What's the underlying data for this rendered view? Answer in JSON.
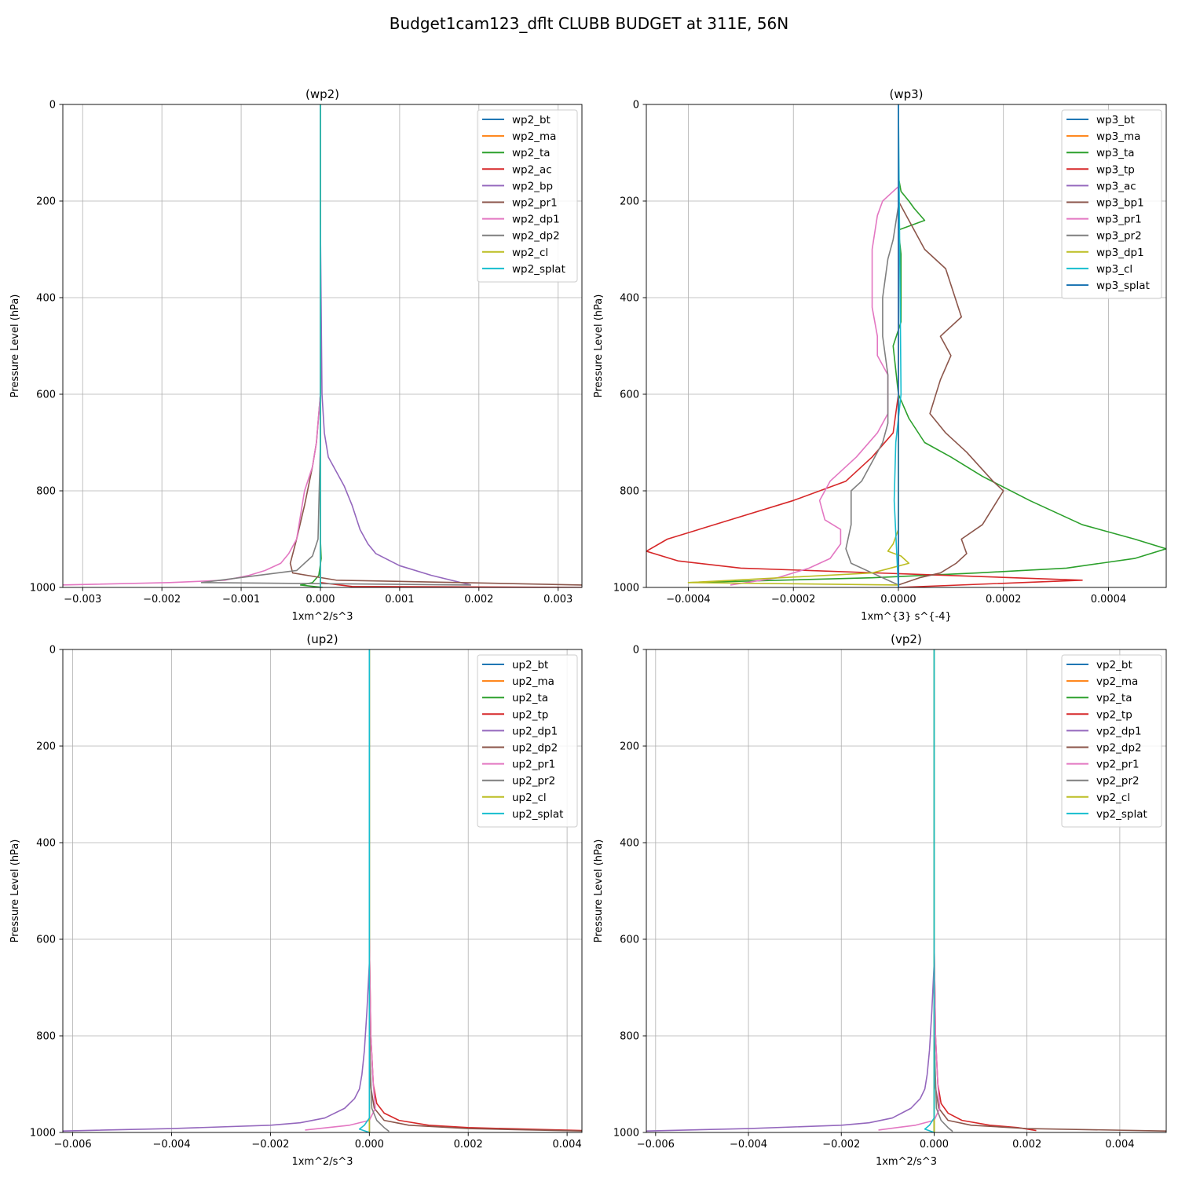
{
  "figure": {
    "title": "Budget1cam123_dflt CLUBB BUDGET at 311E, 56N"
  },
  "colors": [
    "#1f77b4",
    "#ff7f0e",
    "#2ca02c",
    "#d62728",
    "#9467bd",
    "#8c564b",
    "#e377c2",
    "#7f7f7f",
    "#bcbd22",
    "#17becf"
  ],
  "chart_data": [
    {
      "type": "line",
      "title": "(wp2)",
      "xlabel": "1xm^2/s^3",
      "ylabel": "Pressure Level (hPa)",
      "xlim": [
        -0.00325,
        0.0033
      ],
      "ylim": [
        1000,
        0
      ],
      "xticks": [
        -0.003,
        -0.002,
        -0.001,
        0.0,
        0.001,
        0.002,
        0.003
      ],
      "xticklabels": [
        "−0.003",
        "−0.002",
        "−0.001",
        "0.000",
        "0.001",
        "0.002",
        "0.003"
      ],
      "yticks": [
        0,
        200,
        400,
        600,
        800,
        1000
      ],
      "yticklabels": [
        "0",
        "200",
        "400",
        "600",
        "800",
        "1000"
      ],
      "grid": true,
      "legend": "upper right",
      "series": [
        {
          "name": "wp2_bt",
          "x": [
            0,
            0
          ],
          "y": [
            0,
            1000
          ]
        },
        {
          "name": "wp2_ma",
          "x": [
            0,
            0
          ],
          "y": [
            0,
            1000
          ]
        },
        {
          "name": "wp2_ta",
          "x": [
            0,
            0,
            1e-05,
            -2e-05,
            -0.0001,
            -0.00025,
            3e-05
          ],
          "y": [
            0,
            900,
            940,
            975,
            990,
            995,
            1000
          ]
        },
        {
          "name": "wp2_ac",
          "x": [
            0,
            0,
            0.0004,
            0.0033
          ],
          "y": [
            0,
            990,
            998,
            1000
          ]
        },
        {
          "name": "wp2_bp",
          "x": [
            0,
            2e-05,
            5e-05,
            0.0001,
            0.0002,
            0.0003,
            0.0004,
            0.0005,
            0.0006,
            0.0007,
            0.001,
            0.0014,
            0.0019
          ],
          "y": [
            250,
            600,
            680,
            730,
            760,
            790,
            830,
            880,
            910,
            930,
            955,
            975,
            995
          ]
        },
        {
          "name": "wp2_pr1",
          "x": [
            0,
            -5e-05,
            -0.0001,
            -0.0002,
            -0.0003,
            -0.00038,
            -0.00035,
            0.0002,
            0.0033
          ],
          "y": [
            600,
            700,
            750,
            830,
            900,
            950,
            970,
            985,
            995
          ]
        },
        {
          "name": "wp2_dp1",
          "x": [
            0,
            -5e-05,
            -0.0001,
            -0.0002,
            -0.00025,
            -0.0003,
            -0.0004,
            -0.0005,
            -0.0007,
            -0.0009,
            -0.0012,
            -0.0019,
            -0.0033
          ],
          "y": [
            600,
            700,
            750,
            800,
            850,
            900,
            930,
            950,
            965,
            975,
            985,
            990,
            995
          ]
        },
        {
          "name": "wp2_dp2",
          "x": [
            0,
            -3e-05,
            -0.0001,
            -0.0003,
            -0.0015,
            0.0019
          ],
          "y": [
            700,
            900,
            935,
            965,
            990,
            995
          ]
        },
        {
          "name": "wp2_cl",
          "x": [
            0,
            0
          ],
          "y": [
            0,
            1000
          ]
        },
        {
          "name": "wp2_splat",
          "x": [
            0,
            0
          ],
          "y": [
            0,
            1000
          ]
        }
      ]
    },
    {
      "type": "line",
      "title": "(wp3)",
      "xlabel": "1xm^{3} s^{-4}",
      "ylabel": "Pressure Level (hPa)",
      "xlim": [
        -0.00048,
        0.00051
      ],
      "ylim": [
        1000,
        0
      ],
      "xticks": [
        -0.0004,
        -0.0002,
        0.0,
        0.0002,
        0.0004
      ],
      "xticklabels": [
        "−0.0004",
        "−0.0002",
        "0.0000",
        "0.0002",
        "0.0004"
      ],
      "yticks": [
        0,
        200,
        400,
        600,
        800,
        1000
      ],
      "yticklabels": [
        "0",
        "200",
        "400",
        "600",
        "800",
        "1000"
      ],
      "grid": true,
      "legend": "upper right",
      "series": [
        {
          "name": "wp3_bt",
          "x": [
            0,
            0
          ],
          "y": [
            0,
            1000
          ]
        },
        {
          "name": "wp3_ma",
          "x": [
            0,
            0
          ],
          "y": [
            0,
            1000
          ]
        },
        {
          "name": "wp3_ta",
          "x": [
            0,
            5e-06,
            2e-05,
            3e-05,
            5e-05,
            0.0,
            5e-06,
            5e-06,
            5e-06,
            -1e-05,
            0.0,
            2e-05,
            5e-05,
            0.0001,
            0.00016,
            0.00025,
            0.00035,
            0.00045,
            0.00051,
            0.00045,
            0.00032,
            0.00015,
            -5e-05,
            -0.0004
          ],
          "y": [
            150,
            180,
            200,
            215,
            240,
            260,
            310,
            380,
            450,
            500,
            600,
            650,
            700,
            730,
            770,
            820,
            870,
            900,
            920,
            940,
            960,
            970,
            980,
            990
          ]
        },
        {
          "name": "wp3_tp",
          "x": [
            0,
            0,
            -1e-05,
            -5e-05,
            -0.0001,
            -0.0002,
            -0.00032,
            -0.00044,
            -0.00048,
            -0.00042,
            -0.0003,
            0.00035,
            0.0
          ],
          "y": [
            0,
            600,
            680,
            730,
            780,
            820,
            860,
            900,
            925,
            945,
            960,
            985,
            1000
          ]
        },
        {
          "name": "wp3_ac",
          "x": [
            0,
            0
          ],
          "y": [
            0,
            1000
          ]
        },
        {
          "name": "wp3_bp1",
          "x": [
            0,
            2e-05,
            5e-05,
            9e-05,
            0.00012,
            8e-05,
            0.0001,
            8e-05,
            6e-05,
            9e-05,
            0.00013,
            0.00018,
            0.0002,
            0.00016,
            0.00012,
            0.00013,
            0.00011,
            8e-05,
            4e-05,
            0.0
          ],
          "y": [
            200,
            240,
            300,
            340,
            440,
            480,
            520,
            570,
            640,
            680,
            720,
            780,
            800,
            870,
            900,
            930,
            950,
            970,
            980,
            995
          ]
        },
        {
          "name": "wp3_pr1",
          "x": [
            0,
            -3e-05,
            -4e-05,
            -5e-05,
            -5e-05,
            -4e-05,
            -4e-05,
            -2e-05,
            -2e-05,
            -4e-05,
            -8e-05,
            -0.00013,
            -0.00015,
            -0.00014,
            -0.00011,
            -0.00011,
            -0.00013,
            -0.00017,
            -0.00023,
            -0.00032
          ],
          "y": [
            170,
            200,
            230,
            300,
            420,
            480,
            520,
            560,
            640,
            680,
            730,
            780,
            820,
            860,
            880,
            910,
            940,
            960,
            980,
            995
          ]
        },
        {
          "name": "wp3_pr2",
          "x": [
            0,
            -1e-05,
            -2e-05,
            -3e-05,
            -3e-05,
            -2e-05,
            -2e-05,
            -3e-05,
            -5e-05,
            -7e-05,
            -9e-05,
            -9e-05,
            -0.0001,
            -9e-05,
            -5e-05,
            -2e-05,
            0.0
          ],
          "y": [
            210,
            280,
            320,
            400,
            480,
            560,
            660,
            700,
            740,
            780,
            800,
            870,
            920,
            950,
            970,
            985,
            995
          ]
        },
        {
          "name": "wp3_dp1",
          "x": [
            0,
            0,
            -1e-05,
            -2e-05,
            5e-06,
            2e-05,
            -5e-05,
            -0.0004,
            0.0
          ],
          "y": [
            600,
            880,
            910,
            925,
            935,
            950,
            970,
            990,
            995
          ]
        },
        {
          "name": "wp3_cl",
          "x": [
            0,
            5e-06,
            -5e-06,
            -8e-06,
            0
          ],
          "y": [
            0,
            600,
            700,
            820,
            1000
          ]
        },
        {
          "name": "wp3_splat",
          "x": [
            0,
            0
          ],
          "y": [
            0,
            1000
          ]
        }
      ]
    },
    {
      "type": "line",
      "title": "(up2)",
      "xlabel": "1xm^2/s^3",
      "ylabel": "Pressure Level (hPa)",
      "xlim": [
        -0.0062,
        0.0043
      ],
      "ylim": [
        1000,
        0
      ],
      "xticks": [
        -0.006,
        -0.004,
        -0.002,
        0.0,
        0.002,
        0.004
      ],
      "xticklabels": [
        "−0.006",
        "−0.004",
        "−0.002",
        "0.000",
        "0.002",
        "0.004"
      ],
      "yticks": [
        0,
        200,
        400,
        600,
        800,
        1000
      ],
      "yticklabels": [
        "0",
        "200",
        "400",
        "600",
        "800",
        "1000"
      ],
      "grid": true,
      "legend": "upper right",
      "series": [
        {
          "name": "up2_bt",
          "x": [
            0,
            0
          ],
          "y": [
            0,
            1000
          ]
        },
        {
          "name": "up2_ma",
          "x": [
            0,
            0
          ],
          "y": [
            0,
            1000
          ]
        },
        {
          "name": "up2_ta",
          "x": [
            0,
            0
          ],
          "y": [
            0,
            1000
          ]
        },
        {
          "name": "up2_tp",
          "x": [
            0,
            3e-05,
            8e-05,
            0.00015,
            0.0003,
            0.0006,
            0.0012,
            0.002,
            0.0043
          ],
          "y": [
            600,
            800,
            900,
            940,
            960,
            975,
            985,
            990,
            996
          ]
        },
        {
          "name": "up2_dp1",
          "x": [
            0,
            -5e-05,
            -0.0001,
            -0.00015,
            -0.0002,
            -0.0003,
            -0.0005,
            -0.0009,
            -0.0014,
            -0.002,
            -0.004,
            -0.0062
          ],
          "y": [
            650,
            750,
            830,
            880,
            910,
            930,
            950,
            970,
            980,
            985,
            992,
            997
          ]
        },
        {
          "name": "up2_dp2",
          "x": [
            0,
            2e-05,
            0.0001,
            0.0003,
            0.0008,
            0.002,
            0.0043
          ],
          "y": [
            700,
            900,
            950,
            975,
            985,
            992,
            997
          ]
        },
        {
          "name": "up2_pr1",
          "x": [
            0,
            3e-05,
            8e-05,
            0.00012,
            0.0,
            -0.0004,
            -0.0013
          ],
          "y": [
            600,
            800,
            900,
            950,
            975,
            985,
            995
          ]
        },
        {
          "name": "up2_pr2",
          "x": [
            0,
            5e-05,
            0.00015,
            0.0003,
            0.0004
          ],
          "y": [
            800,
            950,
            975,
            990,
            998
          ]
        },
        {
          "name": "up2_cl",
          "x": [
            0,
            0
          ],
          "y": [
            0,
            1000
          ]
        },
        {
          "name": "up2_splat",
          "x": [
            0,
            0,
            -0.0001,
            -0.0002,
            0
          ],
          "y": [
            0,
            970,
            985,
            993,
            1000
          ]
        }
      ]
    },
    {
      "type": "line",
      "title": "(vp2)",
      "xlabel": "1xm^2/s^3",
      "ylabel": "Pressure Level (hPa)",
      "xlim": [
        -0.0062,
        0.005
      ],
      "ylim": [
        1000,
        0
      ],
      "xticks": [
        -0.006,
        -0.004,
        -0.002,
        0.0,
        0.002,
        0.004
      ],
      "xticklabels": [
        "−0.006",
        "−0.004",
        "−0.002",
        "0.000",
        "0.002",
        "0.004"
      ],
      "yticks": [
        0,
        200,
        400,
        600,
        800,
        1000
      ],
      "yticklabels": [
        "0",
        "200",
        "400",
        "600",
        "800",
        "1000"
      ],
      "grid": true,
      "legend": "upper right",
      "series": [
        {
          "name": "vp2_bt",
          "x": [
            0,
            0
          ],
          "y": [
            0,
            1000
          ]
        },
        {
          "name": "vp2_ma",
          "x": [
            0,
            0
          ],
          "y": [
            0,
            1000
          ]
        },
        {
          "name": "vp2_ta",
          "x": [
            0,
            0
          ],
          "y": [
            0,
            1000
          ]
        },
        {
          "name": "vp2_tp",
          "x": [
            0,
            3e-05,
            8e-05,
            0.00015,
            0.0003,
            0.0006,
            0.0012,
            0.0018,
            0.0022
          ],
          "y": [
            600,
            800,
            900,
            940,
            960,
            975,
            985,
            990,
            996
          ]
        },
        {
          "name": "vp2_dp1",
          "x": [
            0,
            -5e-05,
            -0.0001,
            -0.00015,
            -0.0002,
            -0.0003,
            -0.0005,
            -0.0009,
            -0.0014,
            -0.002,
            -0.004,
            -0.0062
          ],
          "y": [
            650,
            750,
            830,
            880,
            910,
            930,
            950,
            970,
            980,
            985,
            992,
            997
          ]
        },
        {
          "name": "vp2_dp2",
          "x": [
            0,
            2e-05,
            0.0001,
            0.0003,
            0.0008,
            0.002,
            0.005
          ],
          "y": [
            700,
            900,
            950,
            975,
            985,
            992,
            997
          ]
        },
        {
          "name": "vp2_pr1",
          "x": [
            0,
            3e-05,
            8e-05,
            0.00012,
            0.0,
            -0.0004,
            -0.0012
          ],
          "y": [
            600,
            800,
            900,
            950,
            975,
            985,
            995
          ]
        },
        {
          "name": "vp2_pr2",
          "x": [
            0,
            5e-05,
            0.00015,
            0.0003,
            0.0004
          ],
          "y": [
            800,
            950,
            975,
            990,
            998
          ]
        },
        {
          "name": "vp2_cl",
          "x": [
            0,
            0
          ],
          "y": [
            0,
            1000
          ]
        },
        {
          "name": "vp2_splat",
          "x": [
            0,
            0,
            -0.0001,
            -0.0002,
            0
          ],
          "y": [
            0,
            970,
            985,
            993,
            1000
          ]
        }
      ]
    }
  ]
}
